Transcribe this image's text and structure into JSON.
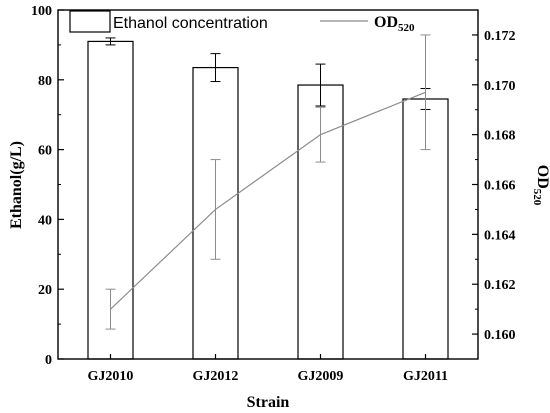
{
  "chart_data": {
    "type": "bar",
    "categories": [
      "GJ2010",
      "GJ2012",
      "GJ2009",
      "GJ2011"
    ],
    "xlabel": "Strain",
    "ylabel": "Ethanol(g/L)",
    "y2label": "OD",
    "y2label_sub": "520",
    "ylim": [
      0,
      100
    ],
    "y2lim": [
      0.159,
      0.173
    ],
    "yticks": [
      0,
      20,
      40,
      60,
      80,
      100
    ],
    "y2ticks": [
      "0.160",
      "0.162",
      "0.164",
      "0.166",
      "0.168",
      "0.170",
      "0.172"
    ],
    "grid": false,
    "legend_position": "top",
    "series": [
      {
        "name": "Ethanol concentration",
        "kind": "bar",
        "axis": "left",
        "values": [
          91,
          83.5,
          78.5,
          74.5
        ],
        "errors": [
          1,
          4,
          6,
          3
        ]
      },
      {
        "name": "OD",
        "name_sub": "520",
        "kind": "line",
        "axis": "right",
        "values": [
          0.161,
          0.165,
          0.168,
          0.1697
        ],
        "errors": [
          0.0008,
          0.002,
          0.0011,
          0.0023
        ],
        "color": "#8c8c8c"
      }
    ]
  }
}
